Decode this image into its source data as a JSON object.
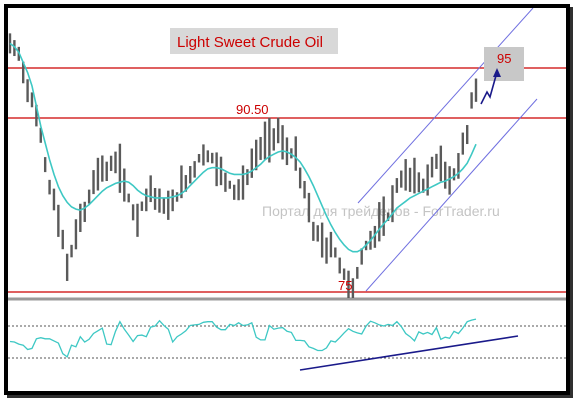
{
  "chart_data": {
    "type": "line",
    "title": "Light Sweet Crude Oil",
    "watermark": "Портал для трейдеров - ForTrader.ru",
    "xlabel": "",
    "ylabel": "",
    "price_panel": {
      "ylim": [
        72.5,
        98
      ],
      "horizontal_levels": [
        {
          "value": 95,
          "label": "95"
        },
        {
          "value": 90.5,
          "label": "90.50"
        },
        {
          "value": 75,
          "label": "75"
        }
      ],
      "target_label": "95",
      "series": [
        {
          "values": [
            97.0,
            96.8,
            96.2,
            94.8,
            93.2,
            92.0,
            90.6,
            89.0,
            86.5,
            84.4,
            83.2,
            81.2,
            79.6,
            77.2,
            78.5,
            80.0,
            81.8,
            82.2,
            83.5,
            84.8,
            85.6,
            86.2,
            85.7,
            86.3,
            86.6,
            86.0,
            84.5,
            83.4,
            82.2,
            81.8,
            82.7,
            83.6,
            84.1,
            83.6,
            83.0,
            82.7,
            82.4,
            83.1,
            83.6,
            84.4,
            84.8,
            85.6,
            86.1,
            86.9,
            87.4,
            87.1,
            86.9,
            86.3,
            85.6,
            85.1,
            84.6,
            84.1,
            84.2,
            84.7,
            85.2,
            86.4,
            87.2,
            87.9,
            88.3,
            88.7,
            89.0,
            89.3,
            88.2,
            87.5,
            87.4,
            87.0,
            85.2,
            84.0,
            82.2,
            80.6,
            80.1,
            79.5,
            78.8,
            79.1,
            78.6,
            77.4,
            76.6,
            75.6,
            75.2,
            76.6,
            78.2,
            79.1,
            79.8,
            80.1,
            80.9,
            81.5,
            81.7,
            83.1,
            84.5,
            85.0,
            85.2,
            85.3,
            85.2,
            84.8,
            84.6,
            85.0,
            86.0,
            86.8,
            86.2,
            85.2,
            84.9,
            85.6,
            86.2,
            88.0,
            89.2,
            92.2,
            93.2
          ]
        },
        {
          "values": [
            97.2,
            96.9,
            96.4,
            95.5,
            94.6,
            93.4,
            91.6,
            89.8,
            88.3,
            86.8,
            85.5,
            84.4,
            83.6,
            83.0,
            82.6,
            82.4,
            82.3,
            82.5,
            82.8,
            83.2,
            83.6,
            84.0,
            84.3,
            84.5,
            84.7,
            84.8,
            84.9,
            84.8,
            84.5,
            84.1,
            83.8,
            83.6,
            83.5,
            83.4,
            83.4,
            83.4,
            83.4,
            83.5,
            83.6,
            83.8,
            84.1,
            84.5,
            84.9,
            85.3,
            85.7,
            86.0,
            86.1,
            86.1,
            86.0,
            85.8,
            85.6,
            85.5,
            85.5,
            85.5,
            85.6,
            85.8,
            86.1,
            86.4,
            86.8,
            87.1,
            87.3,
            87.5,
            87.6,
            87.5,
            87.3,
            87.0,
            86.6,
            86.0,
            85.3,
            84.5,
            83.6,
            82.7,
            81.8,
            81.0,
            80.3,
            79.7,
            79.2,
            78.8,
            78.6,
            78.6,
            78.8,
            79.2,
            79.6,
            80.1,
            80.6,
            81.1,
            81.5,
            82.0,
            82.5,
            82.8,
            83.1,
            83.4,
            83.6,
            83.8,
            84.0,
            84.2,
            84.4,
            84.6,
            84.8,
            84.9,
            85.1,
            85.3,
            85.6,
            86.0,
            86.5,
            87.3,
            88.2
          ]
        }
      ]
    },
    "oscillator_panel": {
      "series": [
        {
          "values": [
            0.51,
            0.5,
            0.46,
            0.44,
            0.36,
            0.38,
            0.56,
            0.58,
            0.56,
            0.56,
            0.52,
            0.48,
            0.28,
            0.22,
            0.44,
            0.41,
            0.6,
            0.5,
            0.55,
            0.66,
            0.71,
            0.76,
            0.46,
            0.45,
            0.7,
            0.88,
            0.74,
            0.63,
            0.51,
            0.62,
            0.63,
            0.6,
            0.78,
            0.8,
            0.9,
            0.81,
            0.74,
            0.5,
            0.6,
            0.65,
            0.71,
            0.81,
            0.82,
            0.83,
            0.87,
            0.88,
            0.88,
            0.78,
            0.73,
            0.73,
            0.83,
            0.81,
            0.86,
            0.81,
            0.82,
            0.86,
            0.59,
            0.54,
            0.54,
            0.81,
            0.74,
            0.76,
            0.77,
            0.7,
            0.68,
            0.53,
            0.53,
            0.52,
            0.41,
            0.38,
            0.34,
            0.34,
            0.39,
            0.52,
            0.5,
            0.58,
            0.67,
            0.75,
            0.7,
            0.67,
            0.65,
            0.8,
            0.89,
            0.86,
            0.82,
            0.8,
            0.83,
            0.81,
            0.88,
            0.79,
            0.66,
            0.6,
            0.52,
            0.69,
            0.65,
            0.68,
            0.64,
            0.77,
            0.55,
            0.59,
            0.57,
            0.7,
            0.66,
            0.76,
            0.88,
            0.91,
            0.93
          ]
        }
      ],
      "levels": [
        0.0,
        0.2,
        0.8,
        1.0
      ]
    }
  }
}
